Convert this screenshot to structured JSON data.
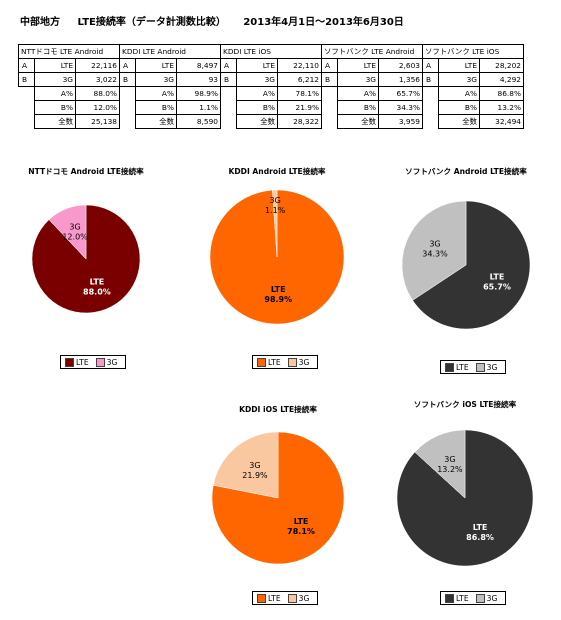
{
  "title": {
    "region": "中部地方",
    "subject": "LTE接続率（データ計測数比較）",
    "period": "2013年4月1日～2013年6月30日"
  },
  "table": {
    "columns": [
      {
        "header": "NTTドコモ LTE Android",
        "a_code": "A",
        "a_label": "LTE",
        "a_value": "22,116",
        "b_code": "B",
        "b_label": "3G",
        "b_value": "3,022",
        "a_pct_label": "A%",
        "a_pct": "88.0%",
        "b_pct_label": "B%",
        "b_pct": "12.0%",
        "total_label": "全数",
        "total": "25,138"
      },
      {
        "header": "KDDI LTE Android",
        "a_code": "A",
        "a_label": "LTE",
        "a_value": "8,497",
        "b_code": "B",
        "b_label": "3G",
        "b_value": "93",
        "a_pct_label": "A%",
        "a_pct": "98.9%",
        "b_pct_label": "B%",
        "b_pct": "1.1%",
        "total_label": "全数",
        "total": "8,590"
      },
      {
        "header": "KDDI LTE iOS",
        "a_code": "A",
        "a_label": "LTE",
        "a_value": "22,110",
        "b_code": "B",
        "b_label": "3G",
        "b_value": "6,212",
        "a_pct_label": "A%",
        "a_pct": "78.1%",
        "b_pct_label": "B%",
        "b_pct": "21.9%",
        "total_label": "全数",
        "total": "28,322"
      },
      {
        "header": "ソフトバンク LTE Android",
        "a_code": "A",
        "a_label": "LTE",
        "a_value": "2,603",
        "b_code": "B",
        "b_label": "3G",
        "b_value": "1,356",
        "a_pct_label": "A%",
        "a_pct": "65.7%",
        "b_pct_label": "B%",
        "b_pct": "34.3%",
        "total_label": "全数",
        "total": "3,959"
      },
      {
        "header": "ソフトバンク LTE iOS",
        "a_code": "A",
        "a_label": "LTE",
        "a_value": "28,202",
        "b_code": "B",
        "b_label": "3G",
        "b_value": "4,292",
        "a_pct_label": "A%",
        "a_pct": "86.8%",
        "b_pct_label": "B%",
        "b_pct": "13.2%",
        "total_label": "全数",
        "total": "32,494"
      }
    ]
  },
  "chart_data": [
    {
      "type": "pie",
      "title": "NTTドコモ Android LTE接続率",
      "labels": [
        "LTE",
        "3G"
      ],
      "values": [
        88.0,
        12.0
      ],
      "display": [
        "88.0%",
        "12.0%"
      ],
      "colors": [
        "#7a0000",
        "#f79acb"
      ],
      "legend": "bottom"
    },
    {
      "type": "pie",
      "title": "KDDI Android LTE接続率",
      "labels": [
        "LTE",
        "3G"
      ],
      "values": [
        98.9,
        1.1
      ],
      "display": [
        "98.9%",
        "1.1%"
      ],
      "colors": [
        "#ff6600",
        "#f9c8a0"
      ],
      "legend": "bottom"
    },
    {
      "type": "pie",
      "title": "ソフトバンク Android LTE接続率",
      "labels": [
        "LTE",
        "3G"
      ],
      "values": [
        65.7,
        34.3
      ],
      "display": [
        "65.7%",
        "34.3%"
      ],
      "colors": [
        "#333333",
        "#c0c0c0"
      ],
      "legend": "bottom"
    },
    {
      "type": "pie",
      "title": "KDDI iOS LTE接続率",
      "labels": [
        "LTE",
        "3G"
      ],
      "values": [
        78.1,
        21.9
      ],
      "display": [
        "78.1%",
        "21.9%"
      ],
      "colors": [
        "#ff6600",
        "#f9c8a0"
      ],
      "legend": "bottom"
    },
    {
      "type": "pie",
      "title": "ソフトバンク iOS LTE接続率",
      "labels": [
        "LTE",
        "3G"
      ],
      "values": [
        86.8,
        13.2
      ],
      "display": [
        "86.8%",
        "13.2%"
      ],
      "colors": [
        "#333333",
        "#c0c0c0"
      ],
      "legend": "bottom"
    }
  ]
}
